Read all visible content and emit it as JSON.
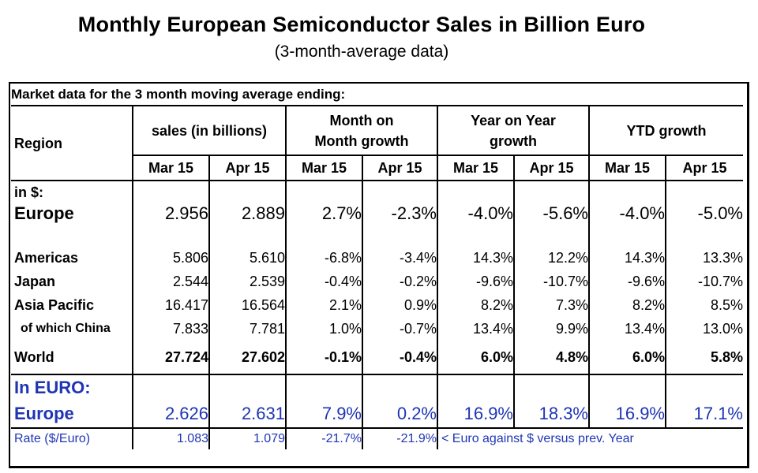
{
  "title": "Monthly European Semiconductor Sales in Billion Euro",
  "subtitle": "(3-month-average data)",
  "market_label": "Market data for the 3 month moving average ending:",
  "header": {
    "region": "Region",
    "sales": "sales (in billions)",
    "mom": "Month on Month growth",
    "yoy": "Year on Year growth",
    "ytd": "YTD growth",
    "months": [
      "Mar 15",
      "Apr 15",
      "Mar 15",
      "Apr 15",
      "Mar 15",
      "Apr 15",
      "Mar 15",
      "Apr 15"
    ]
  },
  "in_dollar_label": "in $:",
  "rows": {
    "europe_usd": {
      "label": "Europe",
      "values": [
        "2.956",
        "2.889",
        "2.7%",
        "-2.3%",
        "-4.0%",
        "-5.6%",
        "-4.0%",
        "-5.0%"
      ]
    },
    "americas": {
      "label": "Americas",
      "values": [
        "5.806",
        "5.610",
        "-6.8%",
        "-3.4%",
        "14.3%",
        "12.2%",
        "14.3%",
        "13.3%"
      ]
    },
    "japan": {
      "label": "Japan",
      "values": [
        "2.544",
        "2.539",
        "-0.4%",
        "-0.2%",
        "-9.6%",
        "-10.7%",
        "-9.6%",
        "-10.7%"
      ]
    },
    "asia_pacific": {
      "label": "Asia Pacific",
      "values": [
        "16.417",
        "16.564",
        "2.1%",
        "0.9%",
        "8.2%",
        "7.3%",
        "8.2%",
        "8.5%"
      ]
    },
    "china": {
      "label": "of which China",
      "values": [
        "7.833",
        "7.781",
        "1.0%",
        "-0.7%",
        "13.4%",
        "9.9%",
        "13.4%",
        "13.0%"
      ]
    },
    "world": {
      "label": "World",
      "values": [
        "27.724",
        "27.602",
        "-0.1%",
        "-0.4%",
        "6.0%",
        "4.8%",
        "6.0%",
        "5.8%"
      ]
    },
    "europe_eur": {
      "label": "Europe",
      "values": [
        "2.626",
        "2.631",
        "7.9%",
        "0.2%",
        "16.9%",
        "18.3%",
        "16.9%",
        "17.1%"
      ]
    },
    "rate": {
      "label": "Rate ($/Euro)",
      "values": [
        "1.083",
        "1.079",
        "-21.7%",
        "-21.9%"
      ],
      "note": "< Euro against $ versus prev. Year"
    }
  },
  "in_euro_label": "In EURO:",
  "colors": {
    "blue_text": "#1f35b5",
    "border": "#000000"
  }
}
